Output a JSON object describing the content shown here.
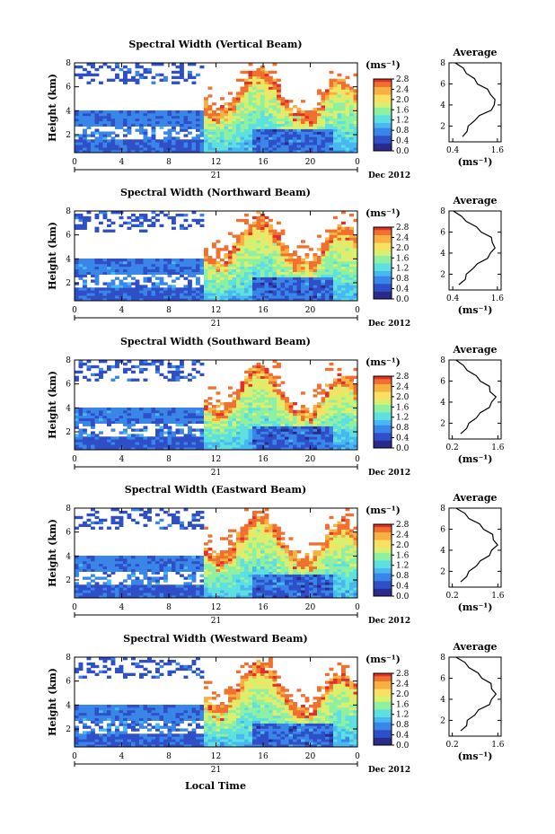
{
  "figure": {
    "xlabel": "Local Time",
    "date_label": "Dec 2012",
    "day_label": "21",
    "ylabel": "Height (km)"
  },
  "chart_data": [
    {
      "type": "heatmap",
      "title": "Spectral Width (Vertical Beam)",
      "xlabel": "Local Time",
      "ylabel": "Height (km)",
      "x_ticks": [
        "0",
        "4",
        "8",
        "12",
        "16",
        "20",
        "0"
      ],
      "xlim": [
        0,
        24
      ],
      "y_ticks": [
        "2",
        "4",
        "6",
        "8"
      ],
      "ylim": [
        0.5,
        8
      ],
      "colorbar": {
        "unit": "(ms⁻¹)",
        "ticks": [
          "0.0",
          "0.4",
          "0.8",
          "1.2",
          "1.6",
          "2.0",
          "2.4",
          "2.8"
        ],
        "range": [
          0.0,
          2.8
        ]
      }
    },
    {
      "type": "line",
      "title": "Average",
      "xlabel": "(ms⁻¹)",
      "x_ticks": [
        "0.4",
        "1.6"
      ],
      "xlim": [
        0.3,
        1.7
      ],
      "y_ticks": [
        "2",
        "4",
        "6",
        "8"
      ],
      "ylim": [
        0.5,
        8
      ],
      "series": [
        {
          "y": [
            1,
            1.5,
            2,
            2.5,
            3,
            3.5,
            4,
            4.5,
            5,
            5.5,
            6,
            6.5,
            7,
            7.5,
            8
          ],
          "x": [
            0.7,
            0.75,
            0.85,
            0.95,
            1.15,
            1.4,
            1.55,
            1.5,
            1.45,
            1.3,
            1.1,
            0.95,
            0.8,
            0.65,
            0.5
          ]
        }
      ]
    },
    {
      "type": "heatmap",
      "title": "Spectral Width (Northward Beam)",
      "xlabel": "Local Time",
      "ylabel": "Height (km)",
      "x_ticks": [
        "0",
        "4",
        "8",
        "12",
        "16",
        "20",
        "0"
      ],
      "xlim": [
        0,
        24
      ],
      "y_ticks": [
        "2",
        "4",
        "6",
        "8"
      ],
      "ylim": [
        0.5,
        8
      ],
      "colorbar": {
        "unit": "(ms⁻¹)",
        "ticks": [
          "0.0",
          "0.4",
          "0.8",
          "1.2",
          "1.6",
          "2.0",
          "2.4",
          "2.8"
        ],
        "range": [
          0.0,
          2.8
        ]
      }
    },
    {
      "type": "line",
      "title": "Average",
      "xlabel": "(ms⁻¹)",
      "x_ticks": [
        "0.4",
        "1.6"
      ],
      "xlim": [
        0.3,
        1.7
      ],
      "series": [
        {
          "y": [
            1,
            1.5,
            2,
            2.5,
            3,
            3.5,
            4,
            4.5,
            5,
            5.5,
            6,
            6.5,
            7,
            7.5,
            8
          ],
          "x": [
            0.6,
            0.7,
            0.8,
            0.9,
            1.1,
            1.3,
            1.45,
            1.5,
            1.5,
            1.4,
            1.2,
            1.0,
            0.8,
            0.6,
            0.45
          ]
        }
      ]
    },
    {
      "type": "heatmap",
      "title": "Spectral Width (Southward Beam)",
      "xlabel": "Local Time",
      "ylabel": "Height (km)",
      "x_ticks": [
        "0",
        "4",
        "8",
        "12",
        "16",
        "20",
        "0"
      ],
      "xlim": [
        0,
        24
      ],
      "y_ticks": [
        "2",
        "4",
        "6",
        "8"
      ],
      "ylim": [
        0.5,
        8
      ],
      "colorbar": {
        "unit": "(ms⁻¹)",
        "ticks": [
          "0.0",
          "0.4",
          "0.8",
          "1.2",
          "1.6",
          "2.0",
          "2.4",
          "2.8"
        ],
        "range": [
          0.0,
          2.8
        ]
      }
    },
    {
      "type": "line",
      "title": "Average",
      "xlabel": "(ms⁻¹)",
      "x_ticks": [
        "0.2",
        "1.6"
      ],
      "xlim": [
        0.1,
        1.7
      ],
      "series": [
        {
          "y": [
            1,
            1.5,
            2,
            2.5,
            3,
            3.5,
            4,
            4.5,
            5,
            5.5,
            6,
            6.5,
            7,
            7.5,
            8
          ],
          "x": [
            0.5,
            0.6,
            0.75,
            0.9,
            1.1,
            1.3,
            1.45,
            1.5,
            1.4,
            1.3,
            1.1,
            0.9,
            0.7,
            0.5,
            0.35
          ]
        }
      ]
    },
    {
      "type": "heatmap",
      "title": "Spectral Width (Eastward Beam)",
      "xlabel": "Local Time",
      "ylabel": "Height (km)",
      "x_ticks": [
        "0",
        "4",
        "8",
        "12",
        "16",
        "20",
        "0"
      ],
      "xlim": [
        0,
        24
      ],
      "y_ticks": [
        "2",
        "4",
        "6",
        "8"
      ],
      "ylim": [
        0.5,
        8
      ],
      "colorbar": {
        "unit": "(ms⁻¹)",
        "ticks": [
          "0.0",
          "0.4",
          "0.8",
          "1.2",
          "1.6",
          "2.0",
          "2.4",
          "2.8"
        ],
        "range": [
          0.0,
          2.8
        ]
      }
    },
    {
      "type": "line",
      "title": "Average",
      "xlabel": "(ms⁻¹)",
      "x_ticks": [
        "0.2",
        "1.6"
      ],
      "xlim": [
        0.1,
        1.7
      ],
      "series": [
        {
          "y": [
            1,
            1.5,
            2,
            2.5,
            3,
            3.5,
            4,
            4.5,
            5,
            5.5,
            6,
            6.5,
            7,
            7.5,
            8
          ],
          "x": [
            0.5,
            0.6,
            0.75,
            0.9,
            1.1,
            1.3,
            1.45,
            1.55,
            1.5,
            1.4,
            1.2,
            1.0,
            0.75,
            0.55,
            0.35
          ]
        }
      ]
    },
    {
      "type": "heatmap",
      "title": "Spectral Width (Westward Beam)",
      "xlabel": "Local Time",
      "ylabel": "Height (km)",
      "x_ticks": [
        "0",
        "4",
        "8",
        "12",
        "16",
        "20",
        "0"
      ],
      "xlim": [
        0,
        24
      ],
      "y_ticks": [
        "2",
        "4",
        "6",
        "8"
      ],
      "ylim": [
        0.5,
        8
      ],
      "colorbar": {
        "unit": "(ms⁻¹)",
        "ticks": [
          "0.0",
          "0.4",
          "0.8",
          "1.2",
          "1.6",
          "2.0",
          "2.4",
          "2.8"
        ],
        "range": [
          0.0,
          2.8
        ]
      }
    },
    {
      "type": "line",
      "title": "Average",
      "xlabel": "(ms⁻¹)",
      "x_ticks": [
        "0.2",
        "1.6"
      ],
      "xlim": [
        0.1,
        1.7
      ],
      "series": [
        {
          "y": [
            1,
            1.5,
            2,
            2.5,
            3,
            3.5,
            4,
            4.5,
            5,
            5.5,
            6,
            6.5,
            7,
            7.5,
            8
          ],
          "x": [
            0.5,
            0.6,
            0.7,
            0.85,
            1.05,
            1.3,
            1.45,
            1.5,
            1.45,
            1.35,
            1.15,
            0.95,
            0.75,
            0.55,
            0.35
          ]
        }
      ]
    }
  ],
  "colormap": [
    "#2a2a8a",
    "#2f4fc8",
    "#3a86e8",
    "#48b8f0",
    "#5fe0e0",
    "#8ef0a0",
    "#d8f070",
    "#f8e060",
    "#f8b040",
    "#f07030",
    "#e03028"
  ]
}
